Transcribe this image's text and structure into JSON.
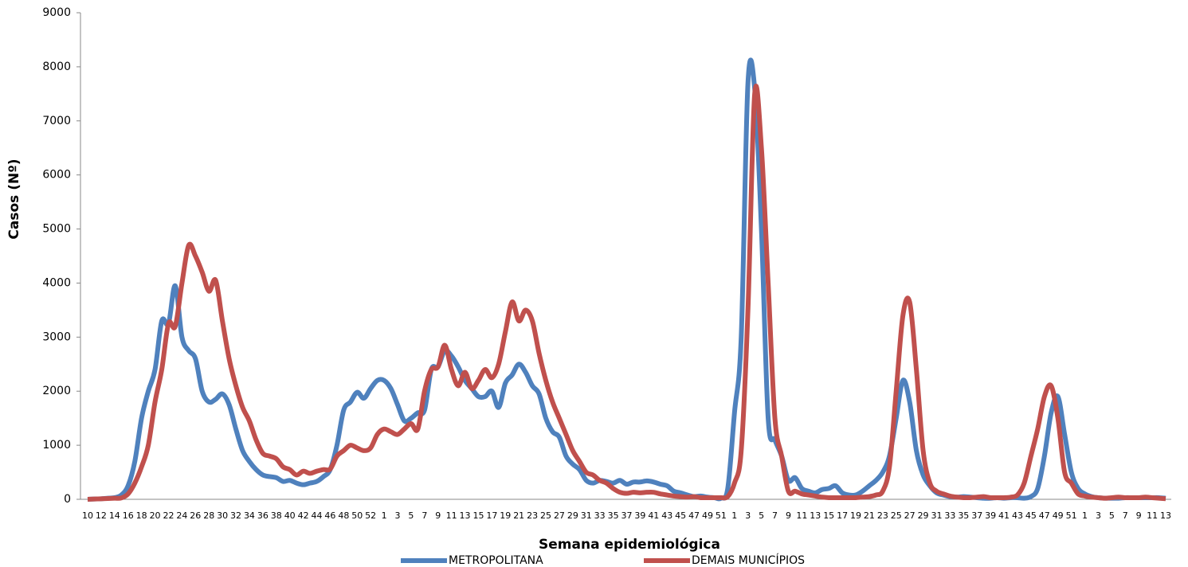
{
  "chart_data": {
    "type": "line",
    "x_label": "Semana epidemiológica",
    "y_label": "Casos (Nº)",
    "categories": [
      "10",
      null,
      "12",
      null,
      "14",
      null,
      "16",
      null,
      "18",
      null,
      "20",
      null,
      "22",
      null,
      "24",
      null,
      "26",
      null,
      "28",
      null,
      "30",
      null,
      "32",
      null,
      "34",
      null,
      "36",
      null,
      "38",
      null,
      "40",
      null,
      "42",
      null,
      "44",
      null,
      "46",
      null,
      "48",
      null,
      "50",
      null,
      "52",
      null,
      "1",
      null,
      "3",
      null,
      "5",
      null,
      "7",
      null,
      "9",
      null,
      "11",
      null,
      "13",
      null,
      "15",
      null,
      "17",
      null,
      "19",
      null,
      "21",
      null,
      "23",
      null,
      "25",
      null,
      "27",
      null,
      "29",
      null,
      "31",
      null,
      "33",
      null,
      "35",
      null,
      "37",
      null,
      "39",
      null,
      "41",
      null,
      "43",
      null,
      "45",
      null,
      "47",
      null,
      "49",
      null,
      "51",
      null,
      "1",
      null,
      "3",
      null,
      "5",
      null,
      "7",
      null,
      "9",
      null,
      "11",
      null,
      "13",
      null,
      "15",
      null,
      "17",
      null,
      "19",
      null,
      "21",
      null,
      "23",
      null,
      "25",
      null,
      "27",
      null,
      "29",
      null,
      "31",
      null,
      "33",
      null,
      "35",
      null,
      "37",
      null,
      "39",
      null,
      "41",
      null,
      "43",
      null,
      "45",
      null,
      "47",
      null,
      "49",
      null,
      "51",
      null,
      "1",
      null,
      "3",
      null,
      "5",
      null,
      "7",
      null,
      "9",
      null,
      "11",
      null,
      "13"
    ],
    "series": [
      {
        "name": "METROPOLITANA",
        "color": "#4f81bd",
        "values": [
          0,
          5,
          10,
          20,
          30,
          80,
          250,
          700,
          1500,
          2000,
          2400,
          3300,
          3250,
          3950,
          3000,
          2750,
          2600,
          2000,
          1800,
          1850,
          1950,
          1750,
          1300,
          900,
          700,
          550,
          450,
          420,
          400,
          330,
          350,
          300,
          270,
          300,
          330,
          420,
          550,
          1000,
          1650,
          1800,
          1980,
          1870,
          2050,
          2200,
          2200,
          2050,
          1750,
          1450,
          1500,
          1600,
          1650,
          2400,
          2450,
          2750,
          2650,
          2450,
          2200,
          2050,
          1900,
          1900,
          2000,
          1700,
          2150,
          2300,
          2500,
          2350,
          2100,
          1950,
          1500,
          1250,
          1150,
          800,
          650,
          550,
          350,
          300,
          350,
          330,
          300,
          350,
          280,
          320,
          320,
          340,
          320,
          280,
          250,
          150,
          120,
          80,
          50,
          60,
          40,
          30,
          20,
          200,
          1600,
          3000,
          7700,
          7600,
          5000,
          1500,
          1100,
          800,
          350,
          400,
          200,
          150,
          120,
          180,
          200,
          250,
          120,
          80,
          80,
          150,
          250,
          350,
          500,
          800,
          1500,
          2200,
          1800,
          900,
          450,
          250,
          120,
          80,
          50,
          40,
          50,
          40,
          30,
          20,
          20,
          30,
          20,
          30,
          30,
          20,
          50,
          200,
          800,
          1600,
          1900,
          1200,
          500,
          200,
          100,
          50,
          30,
          20,
          20,
          20,
          30,
          30,
          30,
          30,
          30,
          30,
          20
        ]
      },
      {
        "name": "DEMAIS MUNICÍPIOS",
        "color": "#c0504d",
        "values": [
          0,
          5,
          10,
          15,
          20,
          25,
          100,
          300,
          600,
          1000,
          1800,
          2400,
          3250,
          3200,
          4000,
          4700,
          4500,
          4200,
          3850,
          4050,
          3300,
          2600,
          2100,
          1700,
          1450,
          1100,
          850,
          800,
          750,
          600,
          550,
          450,
          520,
          480,
          520,
          550,
          560,
          800,
          900,
          1000,
          950,
          900,
          950,
          1200,
          1300,
          1250,
          1200,
          1300,
          1400,
          1300,
          2000,
          2400,
          2450,
          2850,
          2400,
          2100,
          2350,
          2050,
          2200,
          2400,
          2250,
          2500,
          3100,
          3650,
          3300,
          3500,
          3300,
          2700,
          2200,
          1800,
          1500,
          1200,
          900,
          700,
          500,
          450,
          350,
          300,
          200,
          130,
          110,
          130,
          120,
          130,
          130,
          100,
          80,
          60,
          50,
          40,
          50,
          30,
          30,
          30,
          30,
          50,
          300,
          900,
          3500,
          7500,
          6500,
          4000,
          1500,
          800,
          150,
          150,
          100,
          80,
          60,
          40,
          30,
          30,
          30,
          30,
          30,
          40,
          50,
          80,
          150,
          600,
          2000,
          3400,
          3650,
          2400,
          900,
          300,
          150,
          100,
          60,
          40,
          30,
          30,
          40,
          50,
          30,
          30,
          30,
          40,
          80,
          300,
          800,
          1300,
          1900,
          2100,
          1500,
          500,
          300,
          100,
          60,
          40,
          30,
          20,
          30,
          40,
          30,
          30,
          30,
          40,
          30,
          20,
          10
        ]
      }
    ],
    "ylim": [
      0,
      9000
    ],
    "yticks": [
      0,
      1000,
      2000,
      3000,
      4000,
      5000,
      6000,
      7000,
      8000,
      9000
    ],
    "legend": "bottom"
  }
}
